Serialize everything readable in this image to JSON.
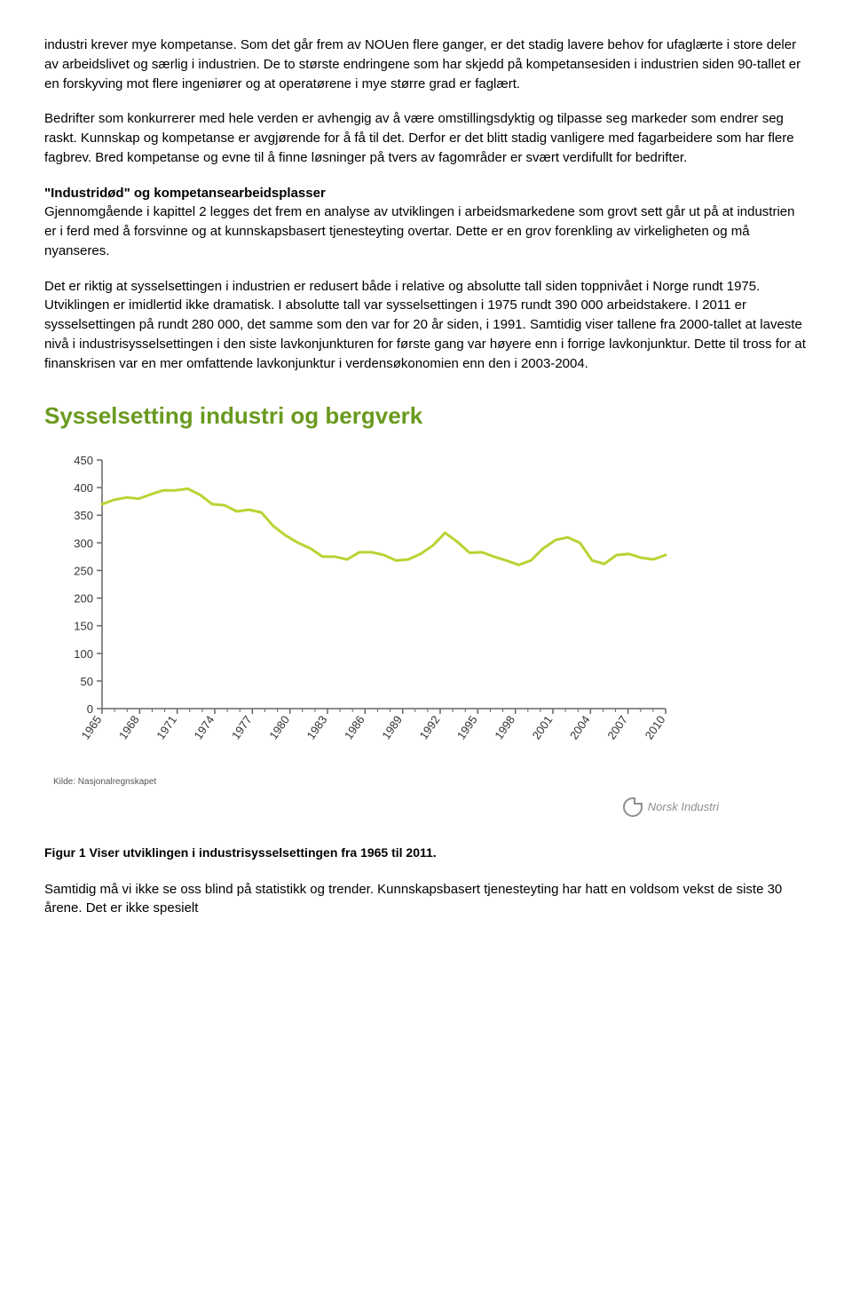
{
  "para1": "industri krever mye kompetanse. Som det går frem av NOUen flere ganger, er det stadig lavere behov for ufaglærte i store deler av arbeidslivet og særlig i industrien. De to største endringene som har skjedd på kompetansesiden i industrien siden 90-tallet er en forskyving mot flere ingeniører og at operatørene i mye større grad er faglært.",
  "para2": "Bedrifter som konkurrerer med hele verden er avhengig av å være omstillingsdyktig og tilpasse seg markeder som endrer seg raskt. Kunnskap og kompetanse er avgjørende for å få til det. Derfor er det blitt stadig vanligere med fagarbeidere som har flere fagbrev. Bred kompetanse og evne til å finne løsninger på tvers av fagområder er svært verdifullt for bedrifter.",
  "heading1": "\"Industridød\" og kompetansearbeidsplasser",
  "para3": "Gjennomgående i kapittel 2 legges det frem en analyse av utviklingen i arbeidsmarkedene som grovt sett går ut på at industrien er i ferd med å forsvinne og at kunnskapsbasert tjenesteyting overtar. Dette er en grov forenkling av virkeligheten og må nyanseres.",
  "para4": "Det er riktig at sysselsettingen i industrien er redusert både i relative og absolutte tall siden toppnivået i Norge rundt 1975. Utviklingen er imidlertid ikke dramatisk. I absolutte tall var sysselsettingen i 1975 rundt 390 000 arbeidstakere. I 2011 er sysselsettingen på rundt 280 000, det samme som den var for 20 år siden, i 1991. Samtidig viser tallene fra 2000-tallet at laveste nivå i industrisysselsettingen i den siste lavkonjunkturen for første gang var høyere enn i forrige lavkonjunktur. Dette til tross for at finanskrisen var en mer omfattende lavkonjunktur i verdensøkonomien enn den i 2003-2004.",
  "chart": {
    "title": "Sysselsetting industri og bergverk",
    "type": "line",
    "x_labels": [
      "1965",
      "1968",
      "1971",
      "1974",
      "1977",
      "1980",
      "1983",
      "1986",
      "1989",
      "1992",
      "1995",
      "1998",
      "2001",
      "2004",
      "2007",
      "2010"
    ],
    "y_ticks": [
      0,
      50,
      100,
      150,
      200,
      250,
      300,
      350,
      400,
      450
    ],
    "ylim": [
      0,
      450
    ],
    "series_color": "#b7d433",
    "line_width": 3,
    "axis_color": "#666666",
    "tick_font_size": 13,
    "background": "#ffffff",
    "values": [
      370,
      378,
      382,
      380,
      388,
      395,
      395,
      398,
      387,
      370,
      368,
      357,
      360,
      355,
      330,
      313,
      300,
      290,
      275,
      275,
      270,
      283,
      283,
      278,
      268,
      270,
      280,
      295,
      318,
      302,
      282,
      283,
      275,
      268,
      260,
      268,
      290,
      305,
      310,
      300,
      268,
      262,
      278,
      280,
      273,
      270,
      278
    ]
  },
  "kilde": "Kilde: Nasjonalregnskapet",
  "logo_text": "Norsk Industri",
  "fig_caption": "Figur 1 Viser utviklingen i industrisysselsettingen fra 1965 til 2011.",
  "para5": "Samtidig må vi ikke se oss blind på statistikk og trender. Kunnskapsbasert tjenesteyting har hatt en voldsom vekst de siste 30 årene. Det er ikke spesielt"
}
